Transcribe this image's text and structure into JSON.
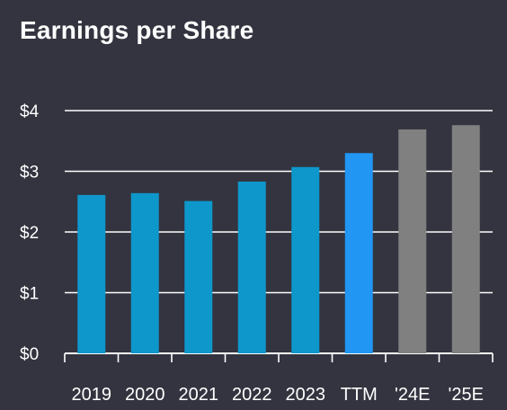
{
  "title": "Earnings per Share",
  "colors": {
    "background": "#33343f",
    "actual": "#0e97cb",
    "ttm": "#2196f3",
    "estimate": "#808080",
    "grid": "#ffffff",
    "text": "#ffffff"
  },
  "chart_data": {
    "type": "bar",
    "title": "Earnings per Share",
    "xlabel": "",
    "ylabel": "",
    "categories": [
      "2019",
      "2020",
      "2021",
      "2022",
      "2023",
      "TTM",
      "'24E",
      "'25E"
    ],
    "values": [
      2.61,
      2.64,
      2.51,
      2.83,
      3.07,
      3.3,
      3.69,
      3.76
    ],
    "bar_kinds": [
      "actual",
      "actual",
      "actual",
      "actual",
      "actual",
      "ttm",
      "estimate",
      "estimate"
    ],
    "ylim": [
      0,
      4
    ],
    "yticks": [
      0,
      1,
      2,
      3,
      4
    ],
    "ytick_labels": [
      "$0",
      "$1",
      "$2",
      "$3",
      "$4"
    ],
    "grid": true,
    "legend": "none"
  }
}
